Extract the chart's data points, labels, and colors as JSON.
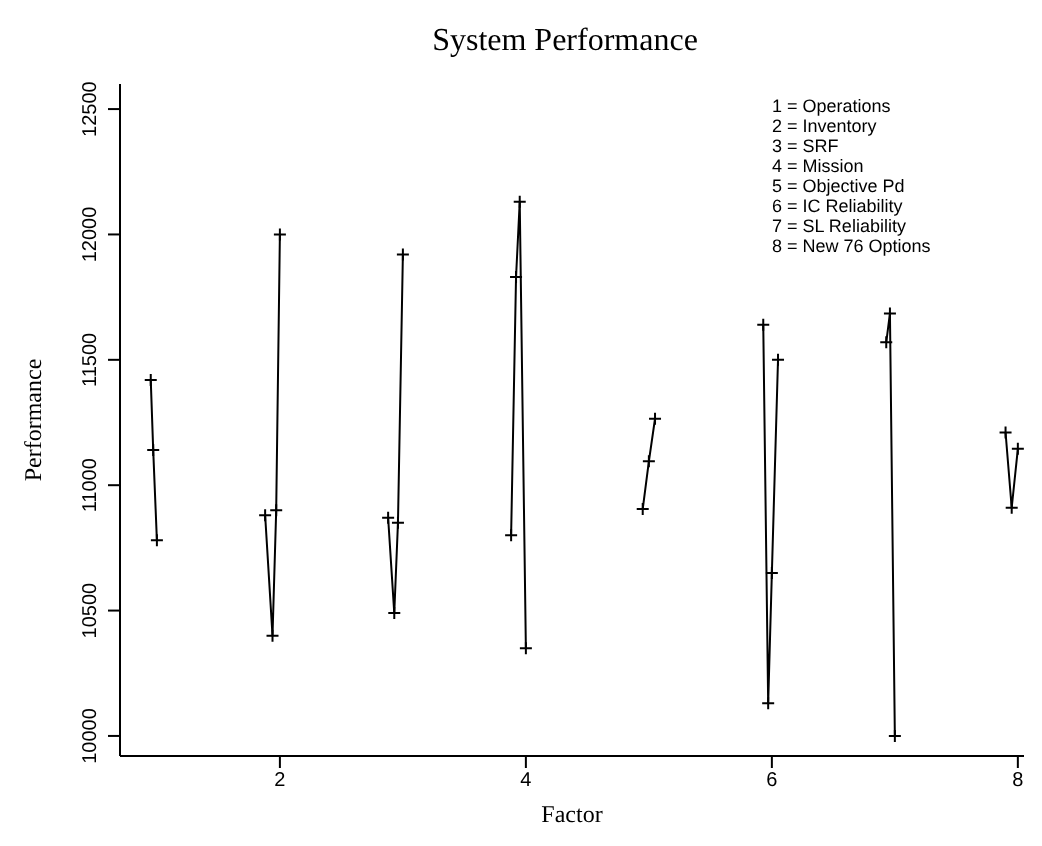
{
  "chart_data": {
    "type": "line",
    "title": "System Performance",
    "xlabel": "Factor",
    "ylabel": "Performance",
    "series": [
      {
        "color": "#000000",
        "x": [
          0.95,
          0.97,
          1.0
        ],
        "values": [
          11420,
          11140,
          10780
        ]
      },
      {
        "color": "#000000",
        "x": [
          1.88,
          1.94,
          1.97,
          2.0
        ],
        "values": [
          10880,
          10400,
          10900,
          12000
        ]
      },
      {
        "color": "#000000",
        "x": [
          2.88,
          2.93,
          2.96,
          3.0
        ],
        "values": [
          10870,
          10490,
          10850,
          11920
        ]
      },
      {
        "color": "#000000",
        "x": [
          3.88,
          3.92,
          3.95,
          4.0
        ],
        "values": [
          10800,
          11830,
          12130,
          10350
        ]
      },
      {
        "color": "#000000",
        "x": [
          4.95,
          5.0,
          5.05
        ],
        "values": [
          10905,
          11095,
          11265
        ]
      },
      {
        "color": "#000000",
        "x": [
          5.93,
          5.97,
          6.0,
          6.05
        ],
        "values": [
          11640,
          10130,
          10650,
          11500
        ]
      },
      {
        "color": "#000000",
        "x": [
          6.93,
          6.96,
          7.0
        ],
        "values": [
          11570,
          11685,
          10000
        ]
      },
      {
        "color": "#000000",
        "x": [
          7.9,
          7.95,
          8.0
        ],
        "values": [
          11210,
          10910,
          11145
        ]
      }
    ],
    "xlim": [
      0.7,
      8.05
    ],
    "xticks": [
      2,
      4,
      6,
      8
    ],
    "ylim": [
      9920,
      12600
    ],
    "yticks": [
      10000,
      10500,
      11000,
      11500,
      12000,
      12500
    ],
    "marker": "cross",
    "line_style": "solid",
    "grid": false,
    "legend": false,
    "annotations": [
      "1 = Operations",
      "2 = Inventory",
      "3 = SRF",
      "4 = Mission",
      "5 = Objective Pd",
      "6 = IC Reliability",
      "7 = SL Reliability",
      "8 = New 76 Options"
    ]
  }
}
